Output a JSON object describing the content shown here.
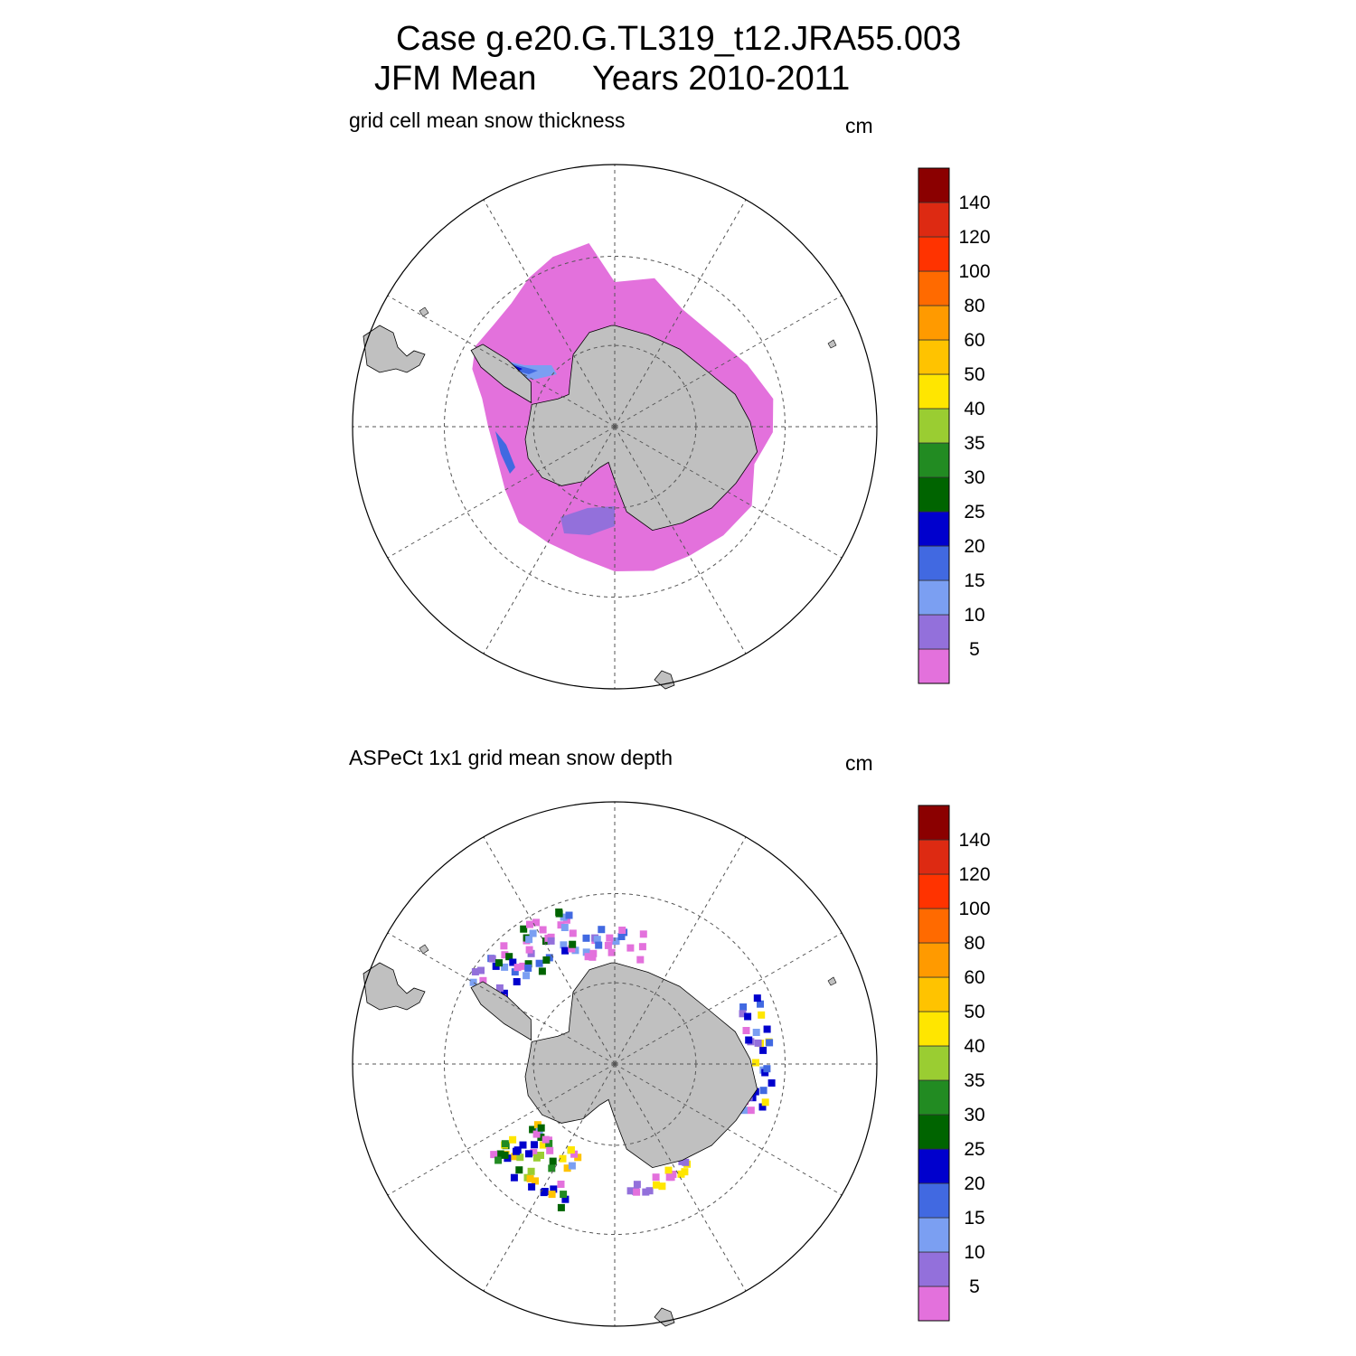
{
  "title": {
    "line1": "Case g.e20.G.TL319_t12.JRA55.003",
    "line2_left": "JFM Mean",
    "line2_right": "Years 2010-2011"
  },
  "colors": {
    "land": "#c0c0c0",
    "grid": "#555555"
  },
  "colorbar": {
    "labels": [
      "5",
      "10",
      "15",
      "20",
      "25",
      "30",
      "35",
      "40",
      "50",
      "60",
      "80",
      "100",
      "120",
      "140"
    ],
    "colors": [
      "#e371dc",
      "#9370db",
      "#7b9ff2",
      "#4169e1",
      "#0000cd",
      "#006400",
      "#228b22",
      "#9acd32",
      "#ffe600",
      "#ffc300",
      "#ff9a00",
      "#ff6a00",
      "#ff3300",
      "#dd2a12",
      "#8b0000"
    ]
  },
  "panels": [
    {
      "subtitle": "grid cell mean snow thickness",
      "units": "cm"
    },
    {
      "subtitle": "ASPeCt 1x1 grid mean snow depth",
      "units": "cm"
    }
  ]
}
